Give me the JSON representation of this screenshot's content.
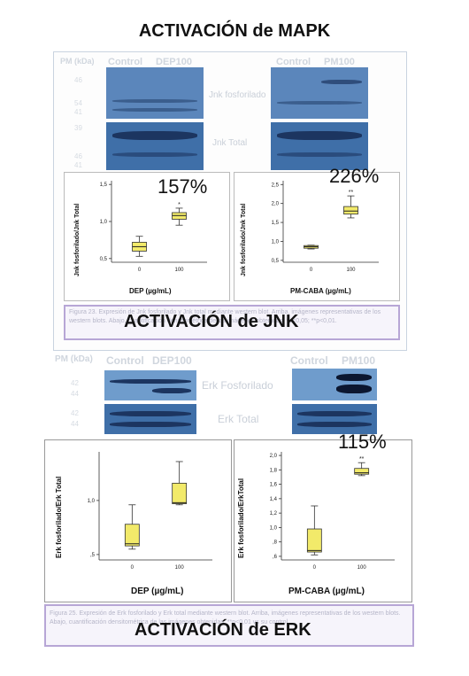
{
  "main_title": "ACTIVACIÓN de MAPK",
  "jnk": {
    "overlay_title": "ACTIVACIÓN de JNK",
    "blot_header": {
      "pm": "PM (kDa)",
      "control_left": "Control",
      "dep": "DEP100",
      "control_right": "Control",
      "pm100": "PM100"
    },
    "mw_top": [
      "46",
      "54",
      "41"
    ],
    "mw_bottom": [
      "39",
      "46",
      "41"
    ],
    "blot_labels": {
      "phospho": "Jnk fosforilado",
      "total": "Jnk Total"
    },
    "caption": "Figura 23. Expresión de Jnk fosforilado y Jnk total mediante western blot. Arriba, imágenes representativas de los western blots. Abajo, cuantificación densitométrica de las imágenes obtenidas. *p<0,05; **p<0,01."
  },
  "erk": {
    "overlay_title": "ACTIVACIÓN de ERK",
    "blot_header": {
      "pm": "PM (kDa)",
      "control_left": "Control",
      "dep": "DEP100",
      "control_right": "Control",
      "pm100": "PM100"
    },
    "mw_top": [
      "42",
      "44"
    ],
    "mw_bottom": [
      "42",
      "44"
    ],
    "blot_labels": {
      "phospho": "Erk Fosforilado",
      "total": "Erk Total"
    },
    "caption": "Figura 25. Expresión de Erk fosforilado y Erk total mediante western blot. Arriba, imágenes representativas de los western blots. Abajo, cuantificación densitométrica de las imágenes obtenidas. **p<0,01 vs su control."
  },
  "chart_data": [
    {
      "type": "box",
      "ylabel": "Jnk fosforilado/Jnk Total",
      "xlabel": "DEP (µg/mL)",
      "categories": [
        "0",
        "100"
      ],
      "yticks": [
        "1,5",
        "1,0",
        "0,5"
      ],
      "ylim": [
        0.45,
        1.55
      ],
      "boxes": [
        {
          "min": 0.53,
          "q1": 0.6,
          "median": 0.66,
          "q3": 0.72,
          "max": 0.8
        },
        {
          "min": 0.95,
          "q1": 1.03,
          "median": 1.08,
          "q3": 1.12,
          "max": 1.18
        }
      ],
      "annotation": "157%",
      "marks": [
        "",
        "*"
      ]
    },
    {
      "type": "box",
      "ylabel": "Jnk fosforilado/Jnk Total",
      "xlabel": "PM-CABA (µg/mL)",
      "categories": [
        "0",
        "100"
      ],
      "yticks": [
        "2,5",
        "2,0",
        "1,5",
        "1,0",
        "0,5"
      ],
      "ylim": [
        0.45,
        2.6
      ],
      "boxes": [
        {
          "min": 0.8,
          "q1": 0.82,
          "median": 0.86,
          "q3": 0.89,
          "max": 0.9
        },
        {
          "min": 1.62,
          "q1": 1.72,
          "median": 1.8,
          "q3": 1.92,
          "max": 2.2
        }
      ],
      "annotation": "226%",
      "marks": [
        "",
        "**"
      ]
    },
    {
      "type": "box",
      "ylabel": "Erk fosforilado/Erk Total",
      "xlabel": "DEP (µg/mL)",
      "categories": [
        "0",
        "100"
      ],
      "yticks": [
        "1,0",
        ",5"
      ],
      "ylim": [
        0.45,
        1.45
      ],
      "boxes": [
        {
          "min": 0.55,
          "q1": 0.58,
          "median": 0.6,
          "q3": 0.78,
          "max": 0.96
        },
        {
          "min": 0.96,
          "q1": 0.97,
          "median": 0.98,
          "q3": 1.16,
          "max": 1.36
        }
      ],
      "annotation": "",
      "marks": [
        "",
        ""
      ]
    },
    {
      "type": "box",
      "ylabel": "Erk fosforilado/ErkTotal",
      "xlabel": "PM-CABA (µg/mL)",
      "categories": [
        "0",
        "100"
      ],
      "yticks": [
        "2,0",
        "1,8",
        "1,6",
        "1,4",
        "1,2",
        "1,0",
        ",8",
        ",6"
      ],
      "ylim": [
        0.55,
        2.05
      ],
      "boxes": [
        {
          "min": 0.62,
          "q1": 0.66,
          "median": 0.68,
          "q3": 0.98,
          "max": 1.3
        },
        {
          "min": 1.72,
          "q1": 1.74,
          "median": 1.76,
          "q3": 1.82,
          "max": 1.9
        }
      ],
      "annotation": "115%",
      "marks": [
        "",
        "**"
      ]
    }
  ]
}
